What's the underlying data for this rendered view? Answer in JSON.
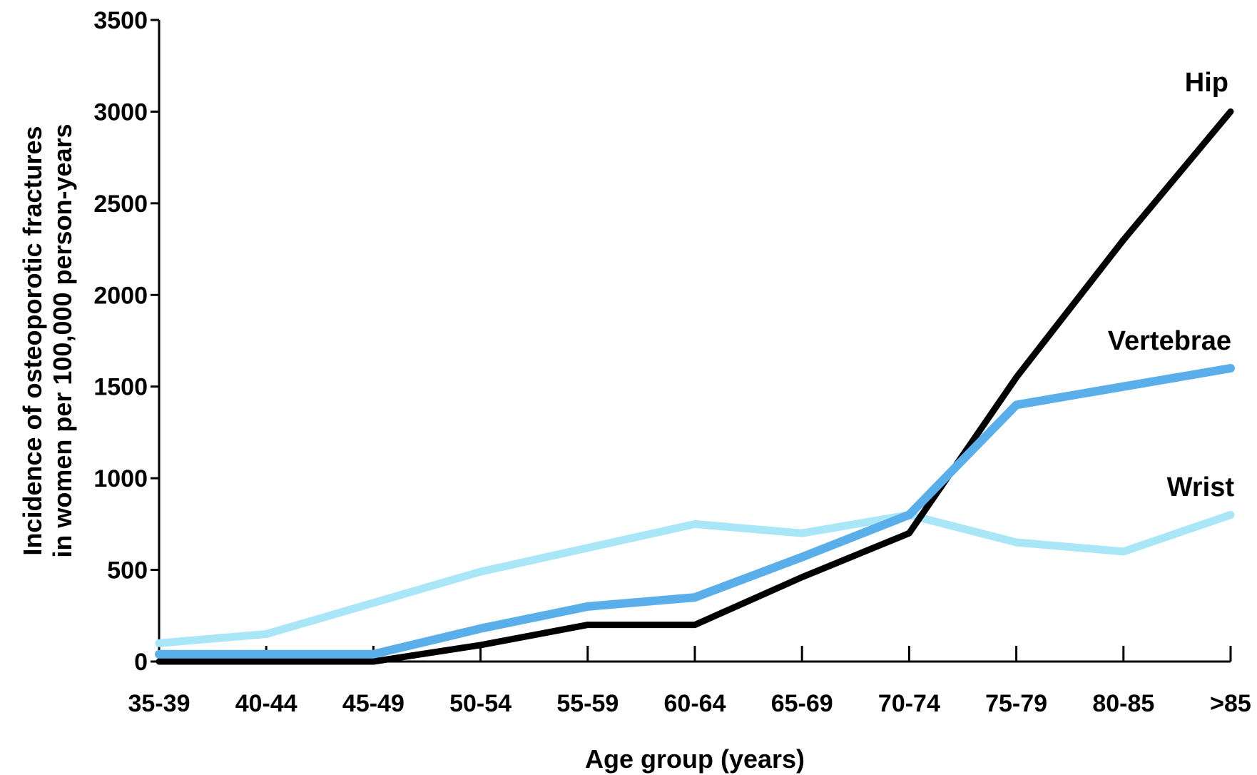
{
  "chart_data": {
    "type": "line",
    "categories": [
      "35-39",
      "40-44",
      "45-49",
      "50-54",
      "55-59",
      "60-64",
      "65-69",
      "70-74",
      "75-79",
      "80-85",
      ">85"
    ],
    "series": [
      {
        "name": "Hip",
        "color": "#000000",
        "values": [
          0,
          0,
          0,
          90,
          200,
          200,
          460,
          700,
          1550,
          2300,
          3000
        ]
      },
      {
        "name": "Vertebrae",
        "color": "#5aaeea",
        "values": [
          40,
          40,
          40,
          180,
          300,
          350,
          570,
          800,
          1400,
          1500,
          1600
        ]
      },
      {
        "name": "Wrist",
        "color": "#a8e6f8",
        "values": [
          100,
          150,
          320,
          490,
          620,
          750,
          700,
          800,
          650,
          600,
          800
        ]
      }
    ],
    "yticks": [
      "0",
      "500",
      "1000",
      "1500",
      "2000",
      "2500",
      "3000",
      "3500"
    ],
    "ylim": [
      0,
      3500
    ],
    "xlabel": "Age group (years)",
    "ylabel": [
      "Incidence of osteoporotic fractures",
      "in women per 100,000 person-years"
    ],
    "grid": false,
    "legend": "inline-right"
  }
}
